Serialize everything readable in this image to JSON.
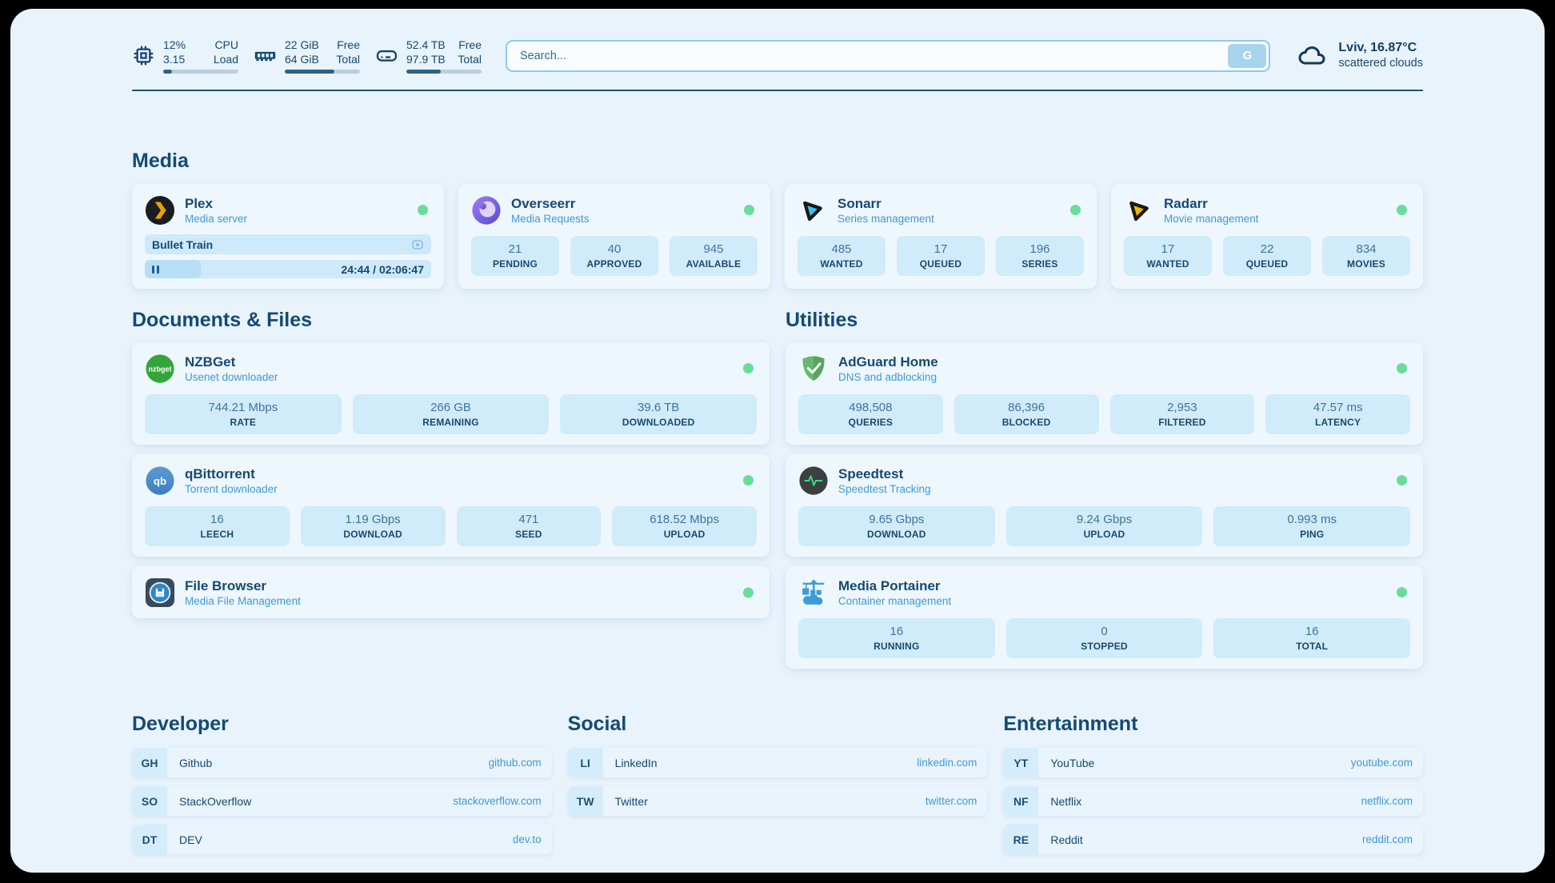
{
  "system_stats": {
    "cpu": {
      "primary": "12%",
      "secondary": "3.15",
      "primary_label": "CPU",
      "secondary_label": "Load",
      "progress_pct": 12
    },
    "memory": {
      "primary": "22 GiB",
      "secondary": "64 GiB",
      "primary_label": "Free",
      "secondary_label": "Total",
      "progress_pct": 66
    },
    "disk": {
      "primary": "52.4 TB",
      "secondary": "97.9 TB",
      "primary_label": "Free",
      "secondary_label": "Total",
      "progress_pct": 46
    }
  },
  "search": {
    "placeholder": "Search...",
    "button_label": "G"
  },
  "weather": {
    "location": "Lviv, 16.87°C",
    "condition": "scattered clouds"
  },
  "sections": {
    "media": {
      "title": "Media",
      "plex": {
        "name": "Plex",
        "description": "Media server",
        "now_playing": "Bullet Train",
        "time": "24:44 / 02:06:47",
        "progress_pct": 19.5,
        "status": "online"
      },
      "overseerr": {
        "name": "Overseerr",
        "description": "Media Requests",
        "status": "online",
        "stats": [
          {
            "value": "21",
            "label": "PENDING"
          },
          {
            "value": "40",
            "label": "APPROVED"
          },
          {
            "value": "945",
            "label": "AVAILABLE"
          }
        ]
      },
      "sonarr": {
        "name": "Sonarr",
        "description": "Series management",
        "status": "online",
        "stats": [
          {
            "value": "485",
            "label": "WANTED"
          },
          {
            "value": "17",
            "label": "QUEUED"
          },
          {
            "value": "196",
            "label": "SERIES"
          }
        ]
      },
      "radarr": {
        "name": "Radarr",
        "description": "Movie management",
        "status": "online",
        "stats": [
          {
            "value": "17",
            "label": "WANTED"
          },
          {
            "value": "22",
            "label": "QUEUED"
          },
          {
            "value": "834",
            "label": "MOVIES"
          }
        ]
      }
    },
    "documents": {
      "title": "Documents & Files",
      "nzbget": {
        "name": "NZBGet",
        "description": "Usenet downloader",
        "status": "online",
        "stats": [
          {
            "value": "744.21 Mbps",
            "label": "RATE"
          },
          {
            "value": "266 GB",
            "label": "REMAINING"
          },
          {
            "value": "39.6 TB",
            "label": "DOWNLOADED"
          }
        ]
      },
      "qbittorrent": {
        "name": "qBittorrent",
        "description": "Torrent downloader",
        "status": "online",
        "stats": [
          {
            "value": "16",
            "label": "LEECH"
          },
          {
            "value": "1.19 Gbps",
            "label": "DOWNLOAD"
          },
          {
            "value": "471",
            "label": "SEED"
          },
          {
            "value": "618.52 Mbps",
            "label": "UPLOAD"
          }
        ]
      },
      "filebrowser": {
        "name": "File Browser",
        "description": "Media File Management",
        "status": "online"
      }
    },
    "utilities": {
      "title": "Utilities",
      "adguard": {
        "name": "AdGuard Home",
        "description": "DNS and adblocking",
        "status": "online",
        "stats": [
          {
            "value": "498,508",
            "label": "QUERIES"
          },
          {
            "value": "86,396",
            "label": "BLOCKED"
          },
          {
            "value": "2,953",
            "label": "FILTERED"
          },
          {
            "value": "47.57 ms",
            "label": "LATENCY"
          }
        ]
      },
      "speedtest": {
        "name": "Speedtest",
        "description": "Speedtest Tracking",
        "status": "online",
        "stats": [
          {
            "value": "9.65 Gbps",
            "label": "DOWNLOAD"
          },
          {
            "value": "9.24 Gbps",
            "label": "UPLOAD"
          },
          {
            "value": "0.993 ms",
            "label": "PING"
          }
        ]
      },
      "portainer": {
        "name": "Media Portainer",
        "description": "Container management",
        "status": "online",
        "stats": [
          {
            "value": "16",
            "label": "RUNNING"
          },
          {
            "value": "0",
            "label": "STOPPED"
          },
          {
            "value": "16",
            "label": "TOTAL"
          }
        ]
      }
    }
  },
  "bookmarks": [
    {
      "title": "Developer",
      "items": [
        {
          "abbr": "GH",
          "name": "Github",
          "url": "github.com"
        },
        {
          "abbr": "SO",
          "name": "StackOverflow",
          "url": "stackoverflow.com"
        },
        {
          "abbr": "DT",
          "name": "DEV",
          "url": "dev.to"
        }
      ]
    },
    {
      "title": "Social",
      "items": [
        {
          "abbr": "LI",
          "name": "LinkedIn",
          "url": "linkedin.com"
        },
        {
          "abbr": "TW",
          "name": "Twitter",
          "url": "twitter.com"
        }
      ]
    },
    {
      "title": "Entertainment",
      "items": [
        {
          "abbr": "YT",
          "name": "YouTube",
          "url": "youtube.com"
        },
        {
          "abbr": "NF",
          "name": "Netflix",
          "url": "netflix.com"
        },
        {
          "abbr": "RE",
          "name": "Reddit",
          "url": "reddit.com"
        }
      ]
    }
  ],
  "colors": {
    "status_online": "#69dd9a",
    "accent_blue": "#3f99d6",
    "navy_text": "#17496f",
    "progress_fill": "#2d6288"
  }
}
